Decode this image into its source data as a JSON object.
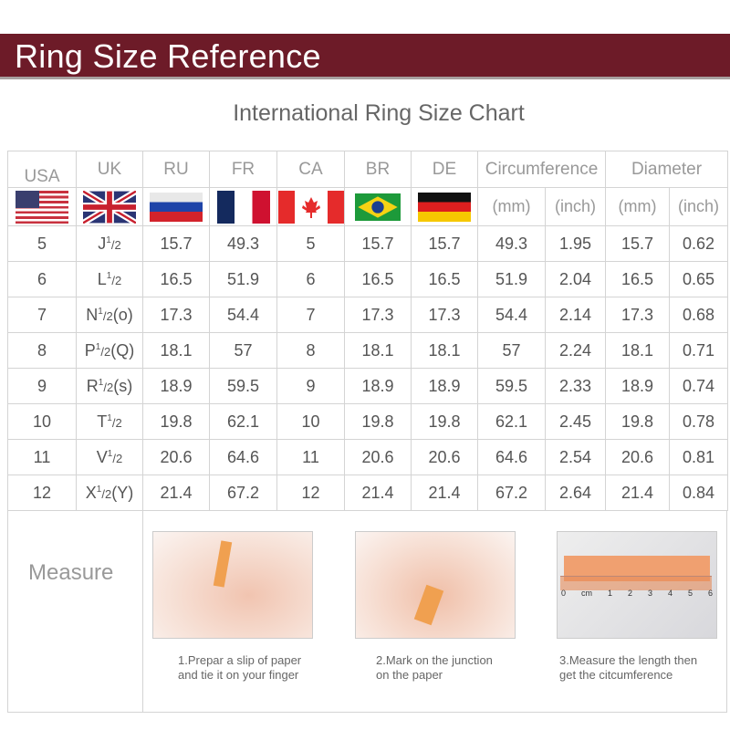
{
  "banner": {
    "title": "Ring Size Reference",
    "color": "#6d1b28"
  },
  "chart_title": "International Ring Size Chart",
  "headers": {
    "usa": "USA",
    "uk": "UK",
    "ru": "RU",
    "fr": "FR",
    "ca": "CA",
    "br": "BR",
    "de": "DE",
    "circumference": "Circumference",
    "diameter": "Diameter",
    "mm": "(mm)",
    "inch": "(inch)"
  },
  "flags": [
    "us-flag",
    "uk-flag",
    "russia-flag",
    "france-flag",
    "canada-flag",
    "brazil-flag",
    "germany-flag"
  ],
  "rows": [
    {
      "usa": "5",
      "uk": {
        "letter": "J",
        "sup": "1",
        "den": "/2",
        "suffix": ""
      },
      "ru": "15.7",
      "fr": "49.3",
      "ca": "5",
      "br": "15.7",
      "de": "15.7",
      "circ_mm": "49.3",
      "circ_inch": "1.95",
      "dia_mm": "15.7",
      "dia_inch": "0.62"
    },
    {
      "usa": "6",
      "uk": {
        "letter": "L",
        "sup": "1",
        "den": "/2",
        "suffix": ""
      },
      "ru": "16.5",
      "fr": "51.9",
      "ca": "6",
      "br": "16.5",
      "de": "16.5",
      "circ_mm": "51.9",
      "circ_inch": "2.04",
      "dia_mm": "16.5",
      "dia_inch": "0.65"
    },
    {
      "usa": "7",
      "uk": {
        "letter": "N",
        "sup": "1",
        "den": "/2",
        "suffix": "(o)"
      },
      "ru": "17.3",
      "fr": "54.4",
      "ca": "7",
      "br": "17.3",
      "de": "17.3",
      "circ_mm": "54.4",
      "circ_inch": "2.14",
      "dia_mm": "17.3",
      "dia_inch": "0.68"
    },
    {
      "usa": "8",
      "uk": {
        "letter": "P",
        "sup": "1",
        "den": "/2",
        "suffix": "(Q)"
      },
      "ru": "18.1",
      "fr": "57",
      "ca": "8",
      "br": "18.1",
      "de": "18.1",
      "circ_mm": "57",
      "circ_inch": "2.24",
      "dia_mm": "18.1",
      "dia_inch": "0.71"
    },
    {
      "usa": "9",
      "uk": {
        "letter": "R",
        "sup": "1",
        "den": "/2",
        "suffix": "(s)"
      },
      "ru": "18.9",
      "fr": "59.5",
      "ca": "9",
      "br": "18.9",
      "de": "18.9",
      "circ_mm": "59.5",
      "circ_inch": "2.33",
      "dia_mm": "18.9",
      "dia_inch": "0.74"
    },
    {
      "usa": "10",
      "uk": {
        "letter": "T",
        "sup": "1",
        "den": "/2",
        "suffix": ""
      },
      "ru": "19.8",
      "fr": "62.1",
      "ca": "10",
      "br": "19.8",
      "de": "19.8",
      "circ_mm": "62.1",
      "circ_inch": "2.45",
      "dia_mm": "19.8",
      "dia_inch": "0.78"
    },
    {
      "usa": "11",
      "uk": {
        "letter": "V",
        "sup": "1",
        "den": "/2",
        "suffix": ""
      },
      "ru": "20.6",
      "fr": "64.6",
      "ca": "11",
      "br": "20.6",
      "de": "20.6",
      "circ_mm": "64.6",
      "circ_inch": "2.54",
      "dia_mm": "20.6",
      "dia_inch": "0.81"
    },
    {
      "usa": "12",
      "uk": {
        "letter": "X",
        "sup": "1",
        "den": "/2",
        "suffix": "(Y)"
      },
      "ru": "21.4",
      "fr": "67.2",
      "ca": "12",
      "br": "21.4",
      "de": "21.4",
      "circ_mm": "67.2",
      "circ_inch": "2.64",
      "dia_mm": "21.4",
      "dia_inch": "0.84"
    }
  ],
  "measure": {
    "label": "Measure",
    "steps": [
      {
        "line1": "1.Prepar a slip of paper",
        "line2": "and tie it on your finger"
      },
      {
        "line1": "2.Mark on the junction",
        "line2": "on the paper"
      },
      {
        "line1": "3.Measure the length then",
        "line2": "get the citcumference"
      }
    ],
    "ruler_labels": [
      "0",
      "cm",
      "1",
      "2",
      "3",
      "4",
      "5",
      "6"
    ]
  }
}
